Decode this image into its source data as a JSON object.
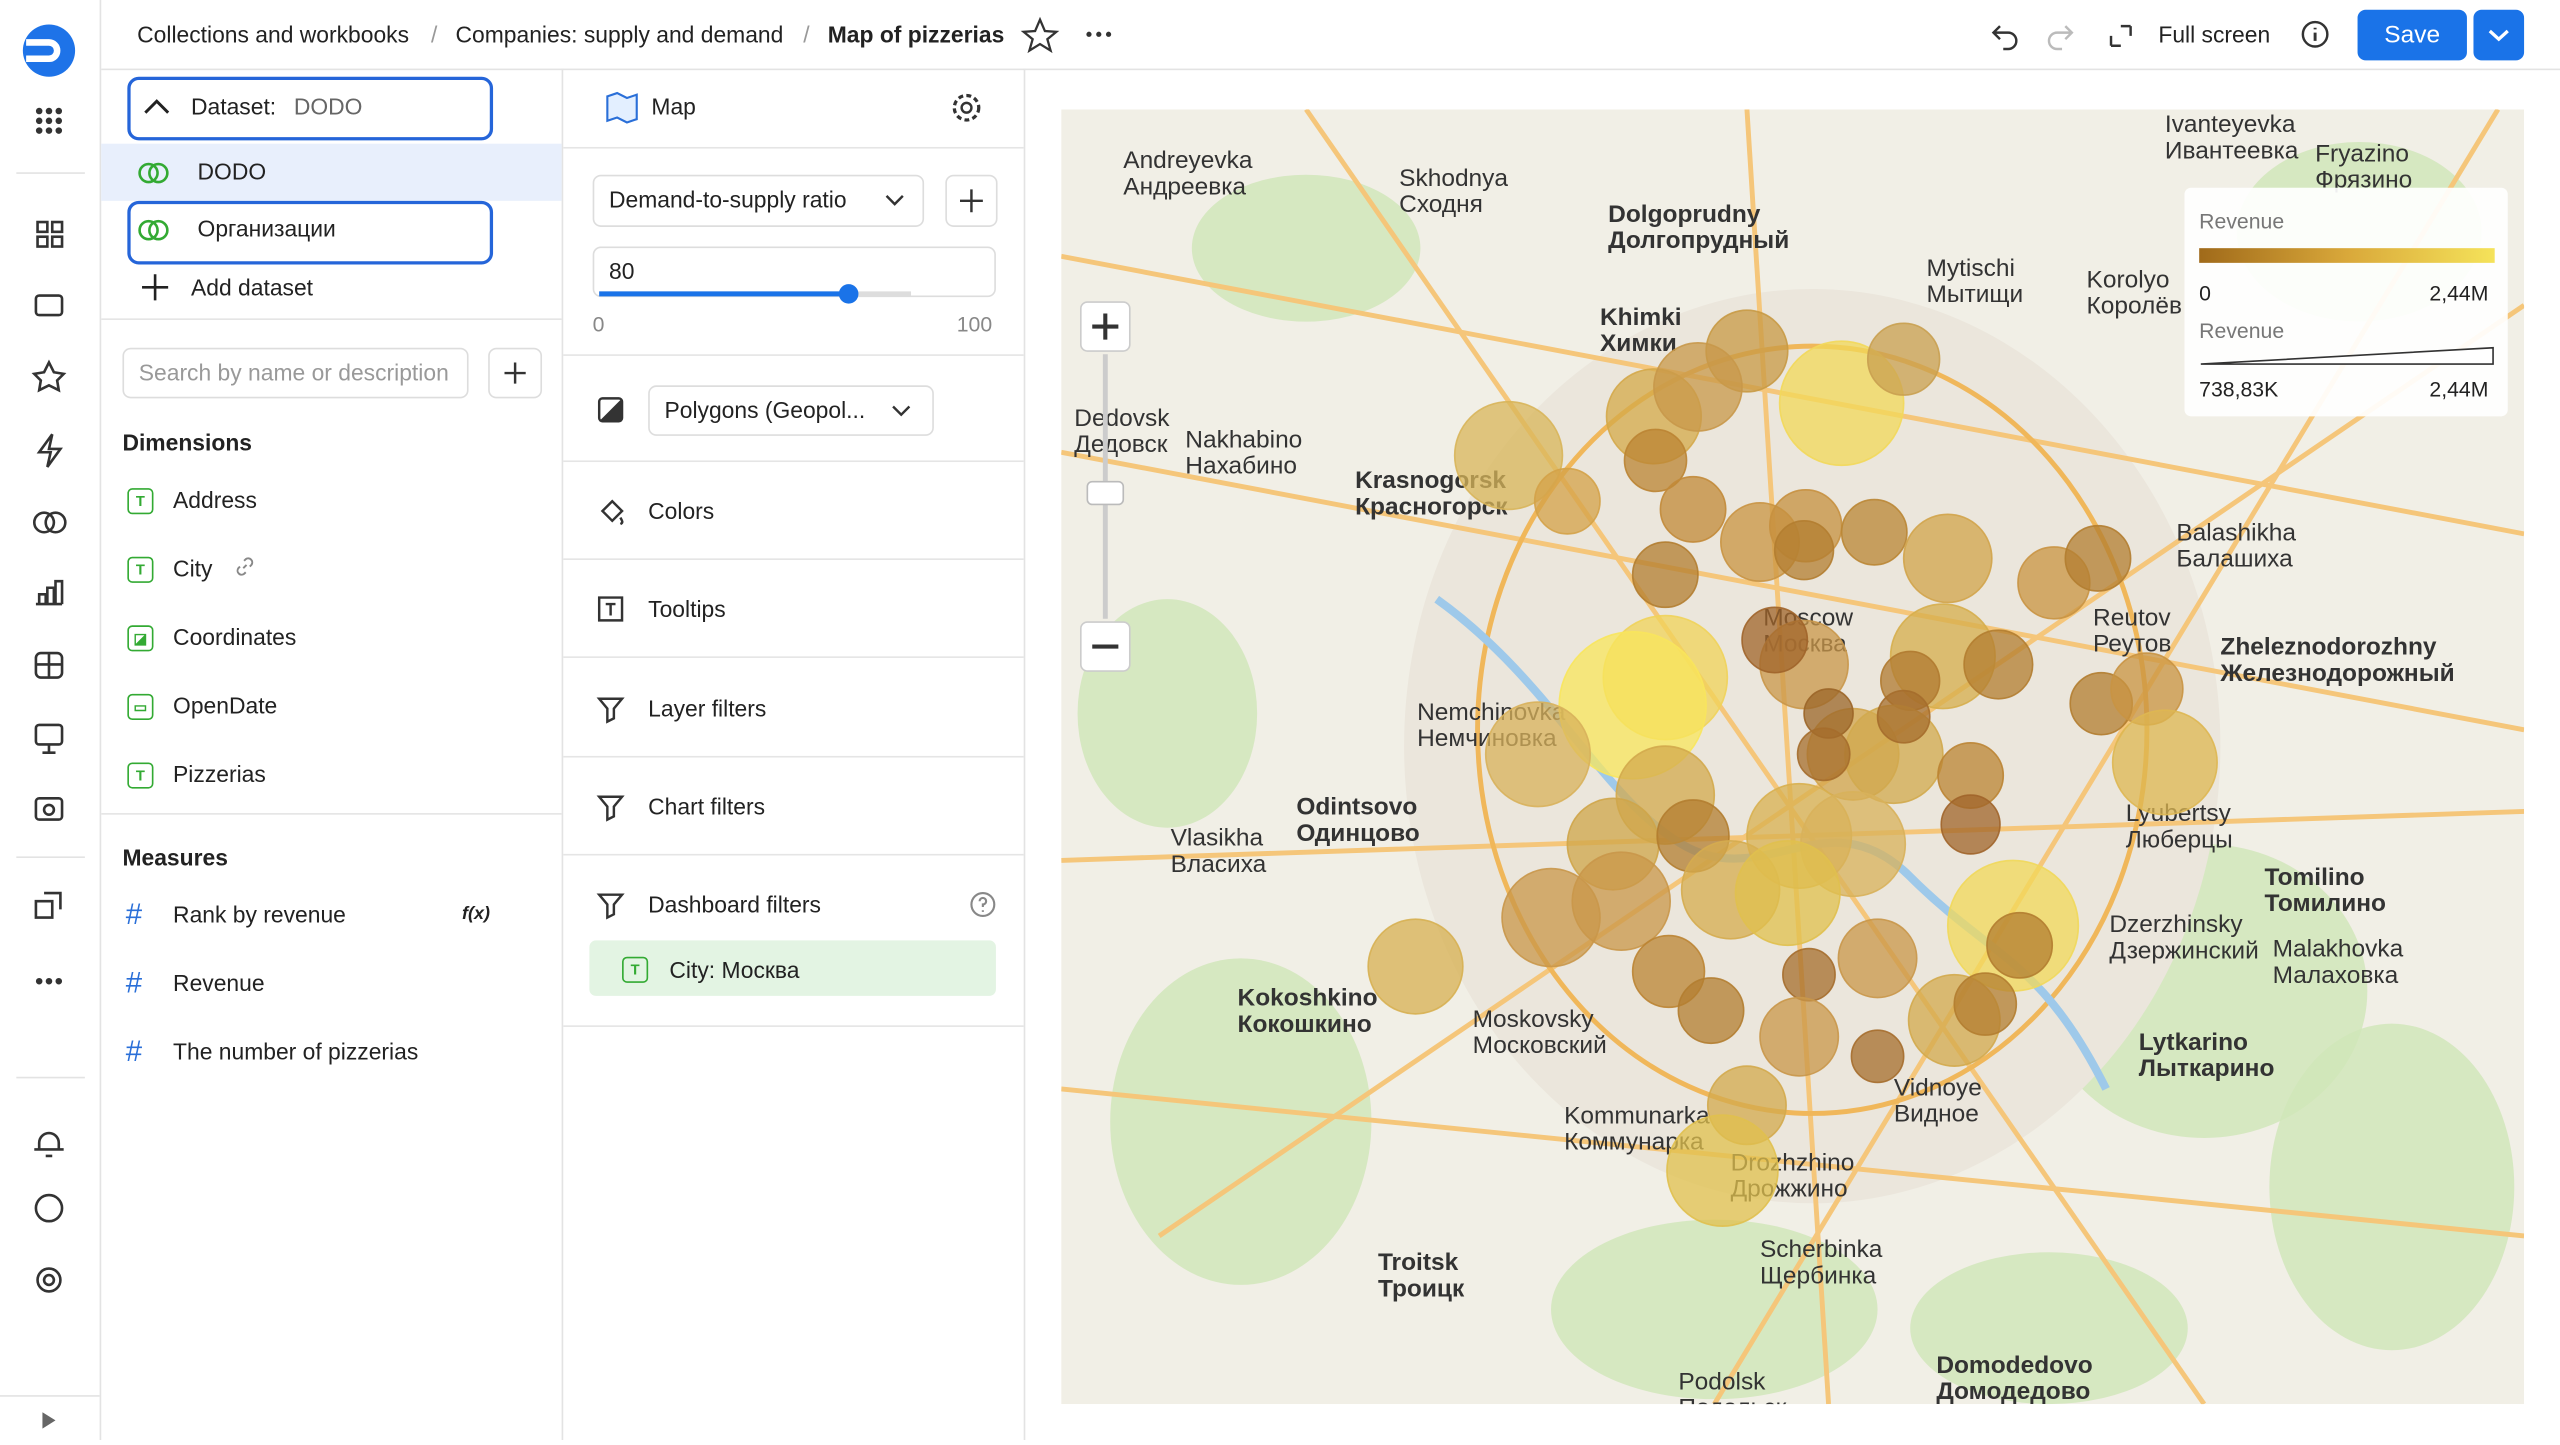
{
  "header": {
    "breadcrumbs": [
      "Collections and workbooks",
      "Companies: supply and demand",
      "Map of pizzerias"
    ],
    "full_screen": "Full screen",
    "save": "Save"
  },
  "datasets": {
    "label": "Dataset:",
    "current": "DODO",
    "items": [
      "DODO",
      "Организации"
    ],
    "add": "Add dataset"
  },
  "search_placeholder": "Search by name or description",
  "dimensions": {
    "title": "Dimensions",
    "fields": [
      "Address",
      "City",
      "Coordinates",
      "OpenDate",
      "Pizzerias"
    ]
  },
  "measures": {
    "title": "Measures",
    "fields": [
      "Rank by revenue",
      "Revenue",
      "The number of pizzerias"
    ],
    "formula_badge": "f(x)"
  },
  "visualization": {
    "type": "Map",
    "measure": "Demand-to-supply ratio",
    "slider": {
      "value": 80,
      "min": 0,
      "max": 100
    },
    "layer": "Polygons (Geopol...",
    "sections": [
      "Colors",
      "Tooltips",
      "Layer filters",
      "Chart filters",
      "Dashboard filters"
    ],
    "filter": "City: Москва"
  },
  "legend": {
    "color_title": "Revenue",
    "color_min": "0",
    "color_max": "2,44M",
    "size_title": "Revenue",
    "size_min": "738,83K",
    "size_max": "2,44M"
  },
  "map_labels": [
    "Andreyevka\nАндреевка",
    "Skhodnya\nСходня",
    "Dolgoprudny\nДолгопрудный",
    "Mytischi\nМытищи",
    "Korolyo\nКоролёв",
    "Khimki\nХимки",
    "Dedovsk\nДедовск",
    "Nakhabino\nНахабино",
    "Krasnogorsk\nКрасногорск",
    "Balashikha\nБалашиха",
    "Reutov\nРеутов",
    "Zheleznodorozhny\nЖелезнодорожный",
    "Moscow\nМосква",
    "Nemchinovka\nНемчиновка",
    "Odintsovo\nОдинцово",
    "Vlasikha\nВласиха",
    "Lyubertsy\nЛюберцы",
    "Tomilino\nТомилино",
    "Dzerzhinsky\nДзержинский",
    "Malakhovka\nМалаховка",
    "Kokoshkino\nКокошкино",
    "Moskovsky\nМосковский",
    "Vidnoye\nВидное",
    "Lytkarino\nЛыткарино",
    "Kommunarka\nКоммунарка",
    "Drozhzhino\nДрожжино",
    "Troitsk\nТроицк",
    "Scherbinka\nЩербинка",
    "Podolsk\nПодольск",
    "Domodedovo\nДомодедово",
    "Ivanteyevka\nИвантеевка",
    "Fryazino\nФрязино"
  ]
}
